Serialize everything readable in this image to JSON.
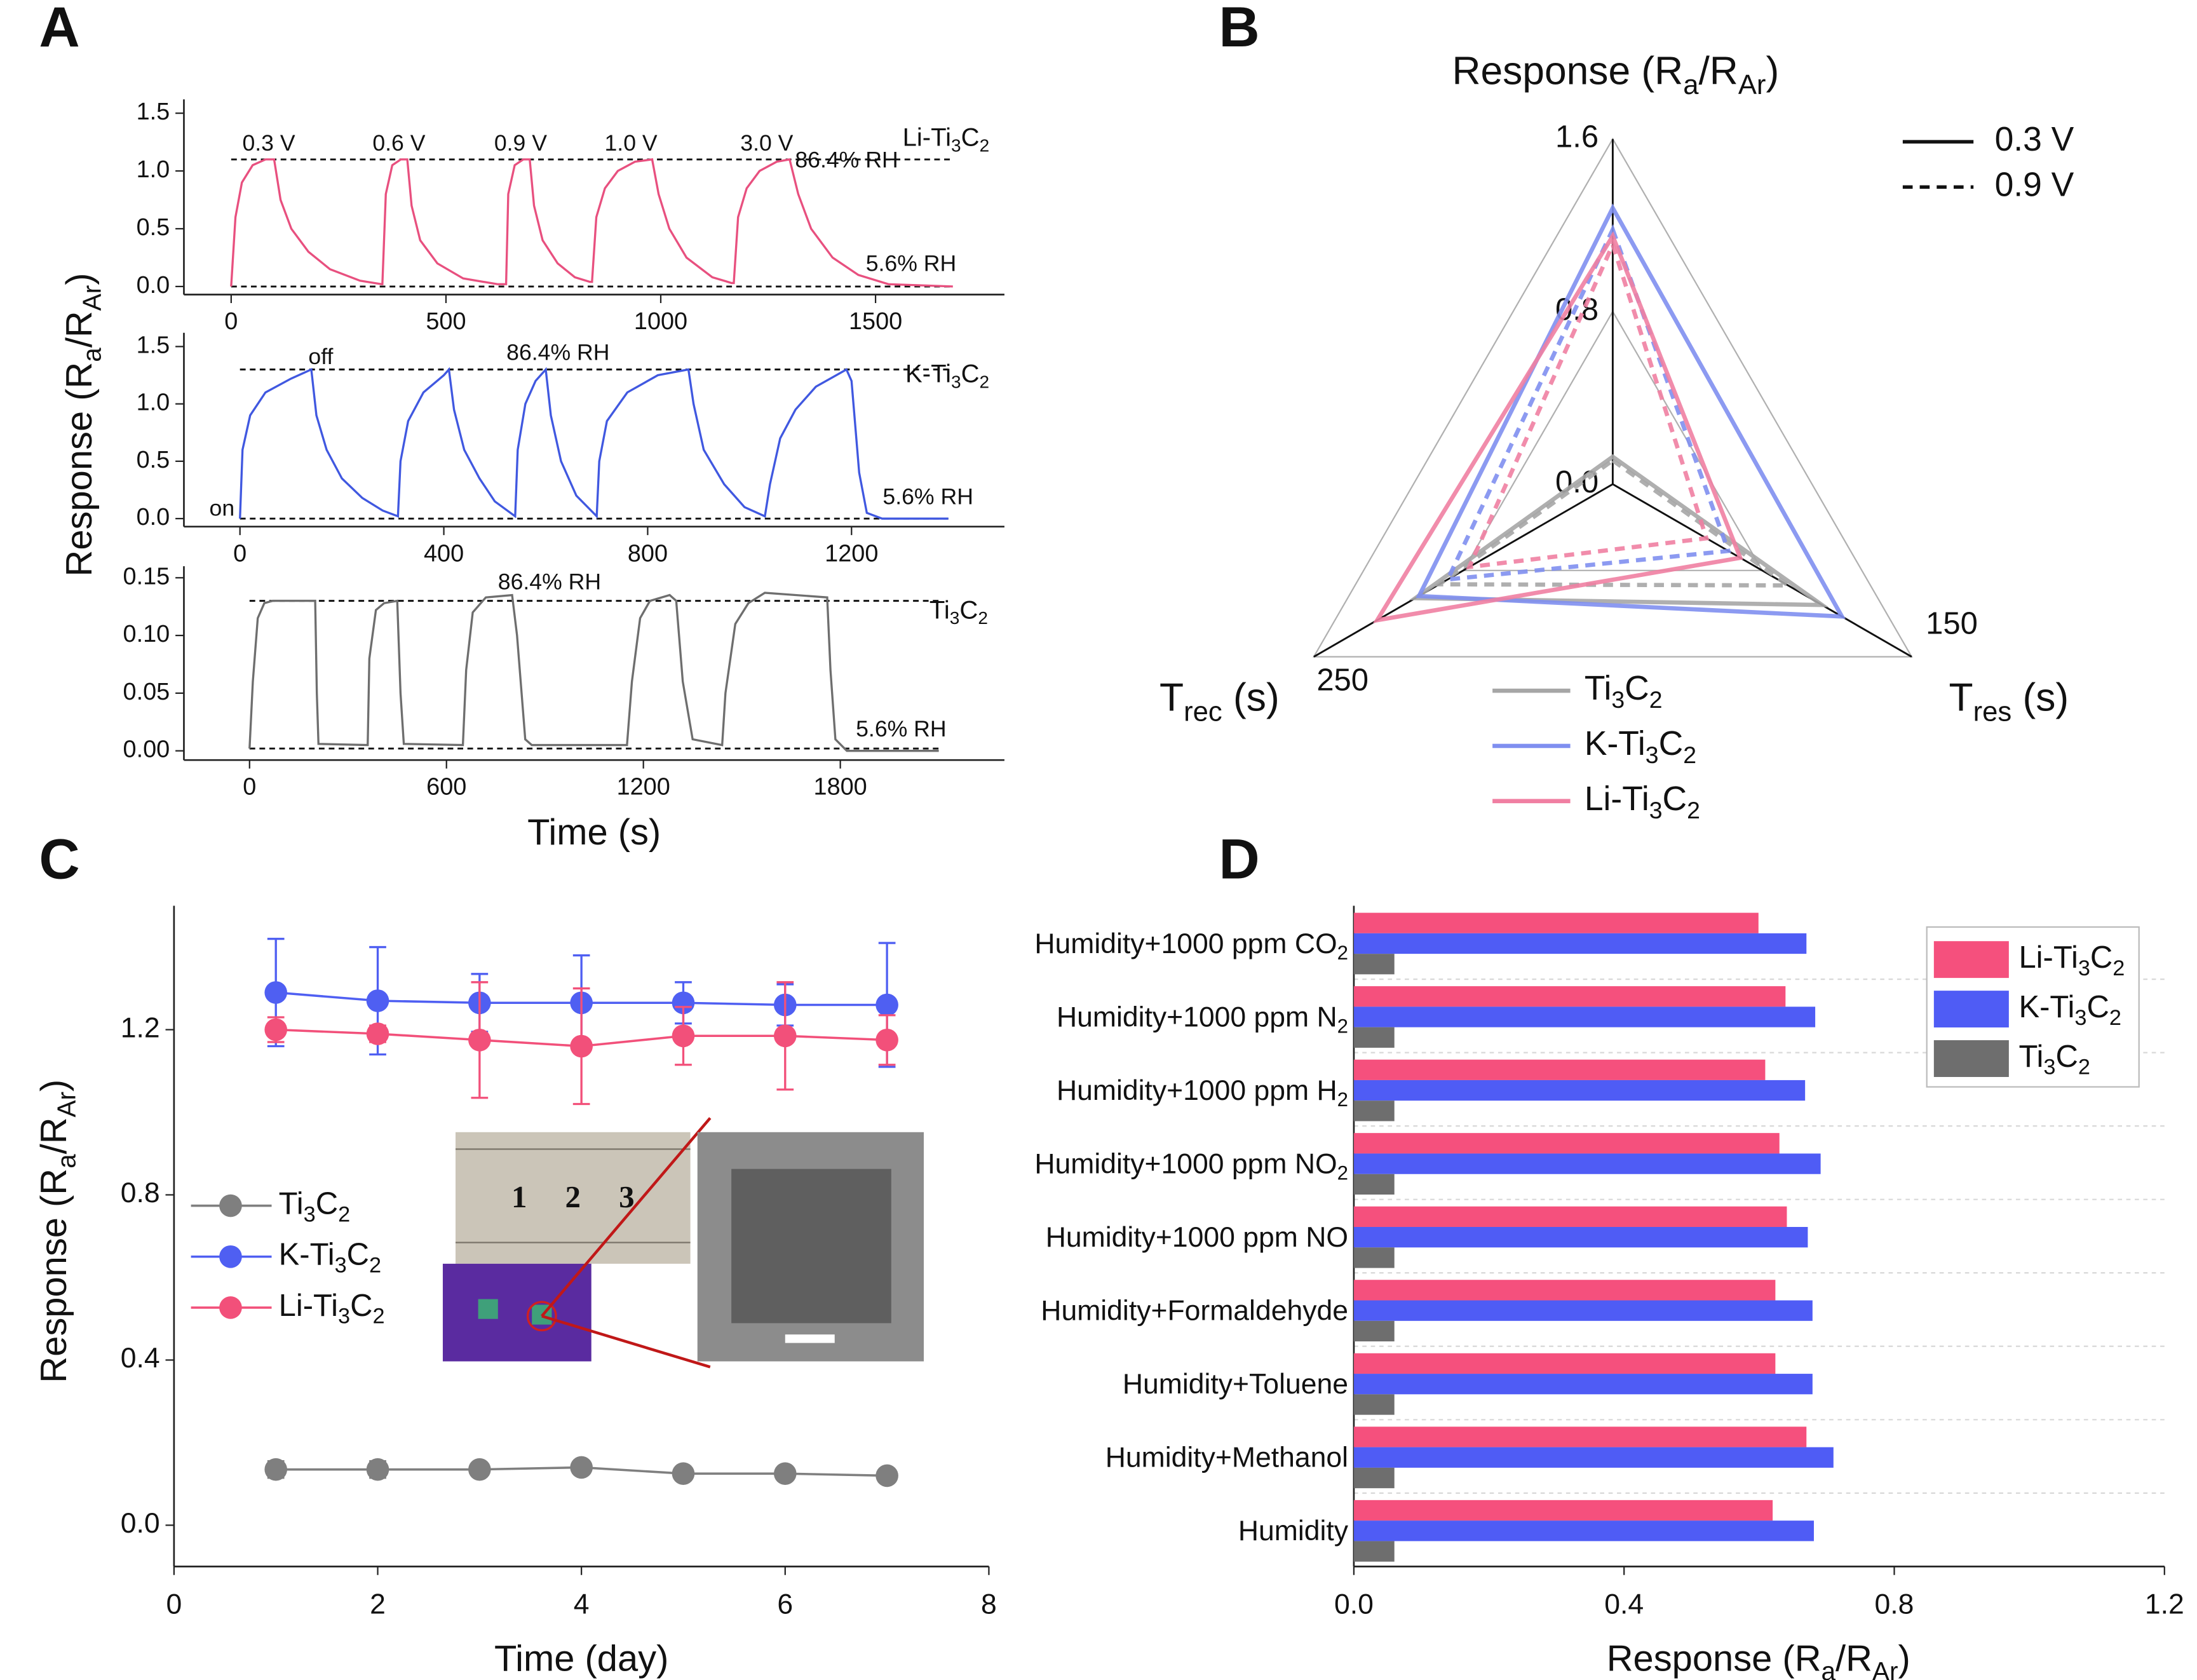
{
  "chart_data": [
    {
      "type": "line",
      "panel": "A",
      "x": [
        0,
        10,
        25,
        50,
        80,
        100,
        115,
        140,
        180,
        230,
        300,
        350,
        352,
        360,
        375,
        395,
        410,
        420,
        440,
        480,
        540,
        620,
        640,
        645,
        660,
        680,
        695,
        705,
        725,
        760,
        800,
        835,
        840,
        850,
        870,
        900,
        940,
        980,
        995,
        1020,
        1060,
        1120,
        1165,
        1170,
        1180,
        1200,
        1230,
        1270,
        1300,
        1320,
        1350,
        1400,
        1460,
        1530,
        1680
      ],
      "series": [
        {
          "name": "Li-Ti3C2",
          "color": "#e8507f",
          "values": [
            0,
            0.6,
            0.9,
            1.05,
            1.1,
            1.1,
            0.75,
            0.5,
            0.3,
            0.15,
            0.05,
            0.02,
            0.02,
            0.8,
            1.05,
            1.1,
            1.1,
            0.7,
            0.4,
            0.2,
            0.07,
            0.02,
            0.02,
            0.8,
            1.05,
            1.1,
            1.1,
            0.7,
            0.4,
            0.2,
            0.08,
            0.04,
            0.04,
            0.6,
            0.85,
            1.0,
            1.08,
            1.1,
            0.8,
            0.5,
            0.25,
            0.08,
            0.03,
            0.03,
            0.6,
            0.85,
            1.0,
            1.08,
            1.1,
            0.8,
            0.5,
            0.25,
            0.1,
            0.02,
            0.0
          ]
        }
      ],
      "reference_lines": [
        1.1,
        0
      ],
      "annotations": [
        "0.3 V",
        "0.6 V",
        "0.9 V",
        "1.0 V",
        "3.0 V",
        "86.4% RH",
        "5.6% RH"
      ],
      "xlim": [
        -110,
        1800
      ],
      "ylim": [
        -0.07,
        1.62
      ],
      "xticks": [
        0,
        500,
        1000,
        1500
      ],
      "yticks": [
        {
          "value": 0,
          "label": "0.0"
        },
        0.5,
        {
          "value": 1,
          "label": "1.0"
        },
        1.5
      ]
    },
    {
      "type": "line",
      "x": [
        0,
        5,
        20,
        50,
        100,
        140,
        150,
        170,
        200,
        240,
        280,
        310,
        315,
        330,
        360,
        400,
        410,
        420,
        440,
        470,
        500,
        540,
        545,
        560,
        580,
        600,
        610,
        630,
        660,
        700,
        705,
        720,
        760,
        820,
        880,
        890,
        910,
        950,
        990,
        1030,
        1040,
        1060,
        1090,
        1130,
        1170,
        1190,
        1200,
        1215,
        1230,
        1260,
        1390
      ],
      "series": [
        {
          "name": "K-Ti3C2",
          "color": "#4058e0",
          "values": [
            0,
            0.6,
            0.9,
            1.1,
            1.22,
            1.3,
            0.9,
            0.6,
            0.35,
            0.18,
            0.07,
            0.02,
            0.5,
            0.85,
            1.1,
            1.25,
            1.3,
            0.95,
            0.6,
            0.35,
            0.15,
            0.02,
            0.6,
            1.0,
            1.2,
            1.3,
            0.9,
            0.5,
            0.2,
            0.02,
            0.5,
            0.85,
            1.1,
            1.25,
            1.3,
            1.0,
            0.6,
            0.3,
            0.1,
            0.02,
            0.3,
            0.7,
            0.95,
            1.15,
            1.25,
            1.3,
            1.2,
            0.4,
            0.05,
            0.0,
            0.0
          ]
        }
      ],
      "reference_lines": [
        1.3,
        0
      ],
      "annotations": [
        "off",
        "86.4% RH",
        "on",
        "5.6% RH"
      ],
      "ylabel": [
        "Response (R",
        "a",
        "/R",
        "Ar",
        ")"
      ],
      "xlim": [
        -110,
        1500
      ],
      "ylim": [
        -0.07,
        1.62
      ],
      "xticks": [
        0,
        400,
        800,
        1200
      ],
      "yticks": [
        {
          "value": 0,
          "label": "0.0"
        },
        0.5,
        {
          "value": 1,
          "label": "1.0"
        },
        1.5
      ]
    },
    {
      "type": "line",
      "x": [
        0,
        10,
        25,
        45,
        70,
        200,
        205,
        210,
        360,
        365,
        385,
        410,
        450,
        460,
        470,
        650,
        660,
        680,
        720,
        800,
        815,
        840,
        860,
        1150,
        1165,
        1190,
        1220,
        1280,
        1300,
        1320,
        1350,
        1440,
        1450,
        1480,
        1520,
        1570,
        1760,
        1770,
        1785,
        1820,
        2100
      ],
      "series": [
        {
          "name": "Ti3C2",
          "color": "#6e6e6e",
          "values": [
            0.002,
            0.06,
            0.115,
            0.128,
            0.13,
            0.13,
            0.05,
            0.006,
            0.005,
            0.08,
            0.122,
            0.128,
            0.13,
            0.05,
            0.006,
            0.005,
            0.07,
            0.12,
            0.133,
            0.135,
            0.1,
            0.01,
            0.005,
            0.005,
            0.06,
            0.115,
            0.13,
            0.135,
            0.13,
            0.06,
            0.01,
            0.005,
            0.05,
            0.11,
            0.128,
            0.137,
            0.133,
            0.07,
            0.01,
            0.0,
            0.0
          ]
        }
      ],
      "reference_lines": [
        0.13,
        0.002
      ],
      "annotations": [
        "86.4% RH",
        "5.6% RH"
      ],
      "xlabel": "Time (s)",
      "xlim": [
        -200,
        2300
      ],
      "ylim": [
        -0.008,
        0.16
      ],
      "xticks": [
        0,
        600,
        1200,
        1800
      ],
      "yticks": [
        {
          "value": 0,
          "label": "0.00"
        },
        0.05,
        {
          "value": 0.1,
          "label": "0.10"
        },
        0.15
      ]
    },
    {
      "type": "radar",
      "panel": "B",
      "axes": [
        {
          "label": [
            "Response (R",
            "a",
            "/R",
            "Ar",
            ")"
          ],
          "lim": [
            0,
            1.6
          ],
          "ticks": [
            {
              "value": 0,
              "label": "0.0"
            },
            0.8,
            1.6
          ]
        },
        {
          "label": [
            "T",
            "res",
            " (s)"
          ],
          "lim": [
            0,
            150
          ],
          "ticks": [
            150
          ]
        },
        {
          "label": [
            "T",
            "rec",
            " (s)"
          ],
          "lim": [
            0,
            250
          ],
          "ticks": [
            250
          ]
        }
      ],
      "line_styles": [
        {
          "name": "0.3 V",
          "dash": "solid"
        },
        {
          "name": "0.9 V",
          "dash": "dashed"
        }
      ],
      "series": [
        {
          "name": "Ti3C2",
          "color": "#a6a6a6",
          "values": [
            [
              0.127,
              105,
              165
            ],
            [
              0.11,
              88,
              145
            ]
          ]
        },
        {
          "name": "K-Ti3C2",
          "color": "#7f8ff0",
          "values": [
            [
              1.28,
              115,
              162
            ],
            [
              1.18,
              58,
              138
            ]
          ]
        },
        {
          "name": "Li-Ti3C2",
          "color": "#f07fa2",
          "values": [
            [
              1.15,
              64,
              197
            ],
            [
              1.11,
              47,
              120
            ]
          ]
        }
      ]
    },
    {
      "type": "line",
      "panel": "C",
      "x": [
        1,
        2,
        3,
        4,
        5,
        6,
        7
      ],
      "series": [
        {
          "name": "Ti3C2",
          "color": "#7f7f7f",
          "values": [
            0.135,
            0.135,
            0.135,
            0.14,
            0.125,
            0.125,
            0.12
          ],
          "errors": [
            0.02,
            0.02,
            0.015,
            0.01,
            0.01,
            0.01,
            0.01
          ]
        },
        {
          "name": "K-Ti3C2",
          "color": "#4f5ff2",
          "values": [
            1.29,
            1.27,
            1.265,
            1.265,
            1.265,
            1.26,
            1.26
          ],
          "errors": [
            0.13,
            0.13,
            0.07,
            0.115,
            0.05,
            0.05,
            0.15
          ]
        },
        {
          "name": "Li-Ti3C2",
          "color": "#f2507a",
          "values": [
            1.2,
            1.19,
            1.175,
            1.16,
            1.185,
            1.185,
            1.175
          ],
          "errors": [
            0.03,
            0.02,
            0.14,
            0.14,
            0.07,
            0.13,
            0.06
          ]
        }
      ],
      "markers": true,
      "legend": "left",
      "inset_labels": [
        "1",
        "2",
        "3"
      ],
      "xlabel": "Time (day)",
      "ylabel": [
        "Response (R",
        "a",
        "/R",
        "Ar",
        ")"
      ],
      "xlim": [
        0,
        8
      ],
      "ylim": [
        -0.1,
        1.5
      ],
      "xticks": [
        0,
        2,
        4,
        6,
        8
      ],
      "yticks": [
        {
          "value": 0,
          "label": "0.0"
        },
        0.4,
        0.8,
        1.2
      ]
    },
    {
      "type": "bar",
      "panel": "D",
      "orientation": "horizontal",
      "categories": [
        "Humidity+1000 ppm CO2",
        "Humidity+1000 ppm N2",
        "Humidity+1000 ppm H2",
        "Humidity+1000 ppm NO2",
        "Humidity+1000 ppm NO",
        "Humidity+Formaldehyde",
        "Humidity+Toluene",
        "Humidity+Methanol",
        "Humidity"
      ],
      "series": [
        {
          "name": "Li-Ti3C2",
          "color": "#f5507d",
          "values": [
            0.599,
            0.639,
            0.609,
            0.63,
            0.641,
            0.624,
            0.624,
            0.67,
            0.62
          ]
        },
        {
          "name": "K-Ti3C2",
          "color": "#4f5cf5",
          "values": [
            0.67,
            0.683,
            0.668,
            0.691,
            0.672,
            0.679,
            0.679,
            0.71,
            0.681
          ]
        },
        {
          "name": "Ti3C2",
          "color": "#6e6e6e",
          "values": [
            0.06,
            0.06,
            0.06,
            0.06,
            0.06,
            0.06,
            0.06,
            0.06,
            0.06
          ]
        }
      ],
      "legend": "upper right",
      "xlabel": [
        "Response (R",
        "a",
        "/R",
        "Ar",
        ")"
      ],
      "xlim": [
        0,
        1.2
      ],
      "xticks": [
        {
          "value": 0,
          "label": "0.0"
        },
        0.4,
        0.8,
        1.2
      ]
    }
  ]
}
